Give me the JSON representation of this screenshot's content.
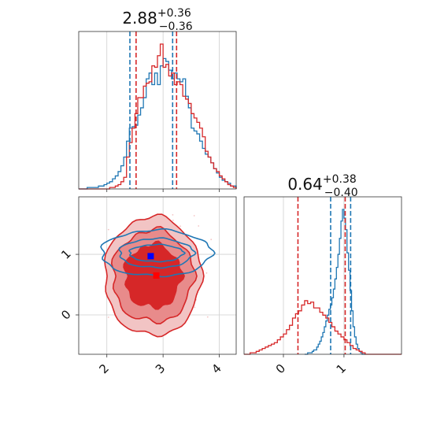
{
  "colors": {
    "red": "#d62728",
    "blue": "#1f77b4",
    "red_fill_light": "#f2c4c4",
    "red_fill_mid": "#e88b8b",
    "red_fill_dark": "#d62728",
    "marker_blue": "#0000ff",
    "marker_red": "#ff0000"
  },
  "titles": {
    "x": {
      "value": "2.88",
      "upper": "+0.36",
      "lower": "−0.36"
    },
    "y": {
      "value": "0.64",
      "upper": "+0.38",
      "lower": "−0.40"
    }
  },
  "chart_data": [
    {
      "type": "step-histogram",
      "panel": "marginal-x",
      "xlim": [
        1.5,
        4.3
      ],
      "grid": true,
      "x_ticks": [
        2,
        3,
        4
      ],
      "series": [
        {
          "color": "blue",
          "bin_width": 0.05,
          "x_start": 1.5,
          "counts": [
            0.0,
            0.0,
            0.0,
            0.01,
            0.01,
            0.01,
            0.01,
            0.02,
            0.02,
            0.03,
            0.04,
            0.05,
            0.07,
            0.09,
            0.12,
            0.16,
            0.22,
            0.33,
            0.42,
            0.43,
            0.44,
            0.51,
            0.56,
            0.63,
            0.76,
            0.8,
            0.72,
            0.8,
            0.72,
            0.85,
            0.9,
            0.88,
            0.82,
            0.76,
            0.8,
            0.76,
            0.74,
            0.76,
            0.64,
            0.56,
            0.42,
            0.4,
            0.38,
            0.33,
            0.28,
            0.24,
            0.22,
            0.18,
            0.14,
            0.11,
            0.08,
            0.06,
            0.05,
            0.04,
            0.02,
            0.02
          ]
        },
        {
          "color": "red",
          "bin_width": 0.05,
          "x_start": 1.5,
          "counts": [
            0.0,
            0.0,
            0.0,
            0.0,
            0.0,
            0.0,
            0.0,
            0.0,
            0.0,
            0.0,
            0.0,
            0.01,
            0.01,
            0.02,
            0.03,
            0.05,
            0.08,
            0.22,
            0.32,
            0.42,
            0.52,
            0.63,
            0.63,
            0.71,
            0.73,
            0.74,
            0.85,
            0.84,
            0.92,
            1.0,
            0.84,
            0.86,
            0.78,
            0.8,
            0.72,
            0.74,
            0.72,
            0.64,
            0.62,
            0.59,
            0.52,
            0.49,
            0.46,
            0.42,
            0.36,
            0.26,
            0.22,
            0.18,
            0.14,
            0.12,
            0.09,
            0.07,
            0.05,
            0.03,
            0.02,
            0.01
          ]
        }
      ],
      "quantile_lines": [
        {
          "color": "blue",
          "x": [
            2.41,
            3.17
          ]
        },
        {
          "color": "red",
          "x": [
            2.52,
            3.24
          ]
        }
      ]
    },
    {
      "type": "step-histogram",
      "panel": "marginal-y",
      "xlim": [
        -0.65,
        1.95
      ],
      "grid": true,
      "x_ticks": [
        0,
        1
      ],
      "series": [
        {
          "color": "blue",
          "bin_width": 0.025,
          "x_start": 0.35,
          "counts": [
            0.0,
            0.0,
            0.01,
            0.01,
            0.01,
            0.02,
            0.03,
            0.03,
            0.05,
            0.07,
            0.09,
            0.12,
            0.15,
            0.19,
            0.23,
            0.27,
            0.31,
            0.34,
            0.39,
            0.45,
            0.52,
            0.6,
            0.69,
            0.8,
            0.92,
            1.0,
            0.94,
            0.86,
            0.7,
            0.58,
            0.44,
            0.3,
            0.19,
            0.12,
            0.07,
            0.04,
            0.02,
            0.01,
            0.0,
            0.0
          ]
        },
        {
          "color": "red",
          "bin_width": 0.05,
          "x_start": -0.65,
          "counts": [
            0.0,
            0.0,
            0.01,
            0.01,
            0.02,
            0.03,
            0.04,
            0.05,
            0.06,
            0.07,
            0.08,
            0.1,
            0.12,
            0.14,
            0.17,
            0.2,
            0.25,
            0.28,
            0.3,
            0.34,
            0.37,
            0.35,
            0.36,
            0.32,
            0.32,
            0.29,
            0.27,
            0.25,
            0.22,
            0.19,
            0.16,
            0.14,
            0.12,
            0.1,
            0.08,
            0.06,
            0.04,
            0.03,
            0.02,
            0.01,
            0.0,
            0.0,
            0.0,
            0.0,
            0.0,
            0.0,
            0.0,
            0.0,
            0.0,
            0.0,
            0.0,
            0.0
          ]
        }
      ],
      "quantile_lines": [
        {
          "color": "red",
          "x": [
            0.24,
            1.02
          ]
        },
        {
          "color": "blue",
          "x": [
            0.78,
            1.11
          ]
        }
      ]
    },
    {
      "type": "contour",
      "panel": "joint",
      "xlim": [
        1.5,
        4.3
      ],
      "ylim": [
        -0.65,
        1.95
      ],
      "grid": true,
      "x_ticks": [
        2,
        3,
        4
      ],
      "y_ticks": [
        0,
        1
      ],
      "series": [
        {
          "color": "red",
          "filled": true,
          "center": [
            2.82,
            0.64
          ],
          "levels_radii": [
            [
              0.5,
              0.52
            ],
            [
              0.72,
              0.76
            ],
            [
              0.86,
              0.98
            ]
          ]
        },
        {
          "color": "blue",
          "filled": false,
          "center": [
            2.88,
            1.02
          ],
          "levels_radii": [
            [
              0.48,
              0.14
            ],
            [
              0.66,
              0.24
            ],
            [
              0.98,
              0.38
            ]
          ]
        }
      ],
      "markers": [
        {
          "color": "marker_blue",
          "x": 2.78,
          "y": 0.97
        },
        {
          "color": "marker_red",
          "x": 2.88,
          "y": 0.65
        }
      ]
    }
  ]
}
